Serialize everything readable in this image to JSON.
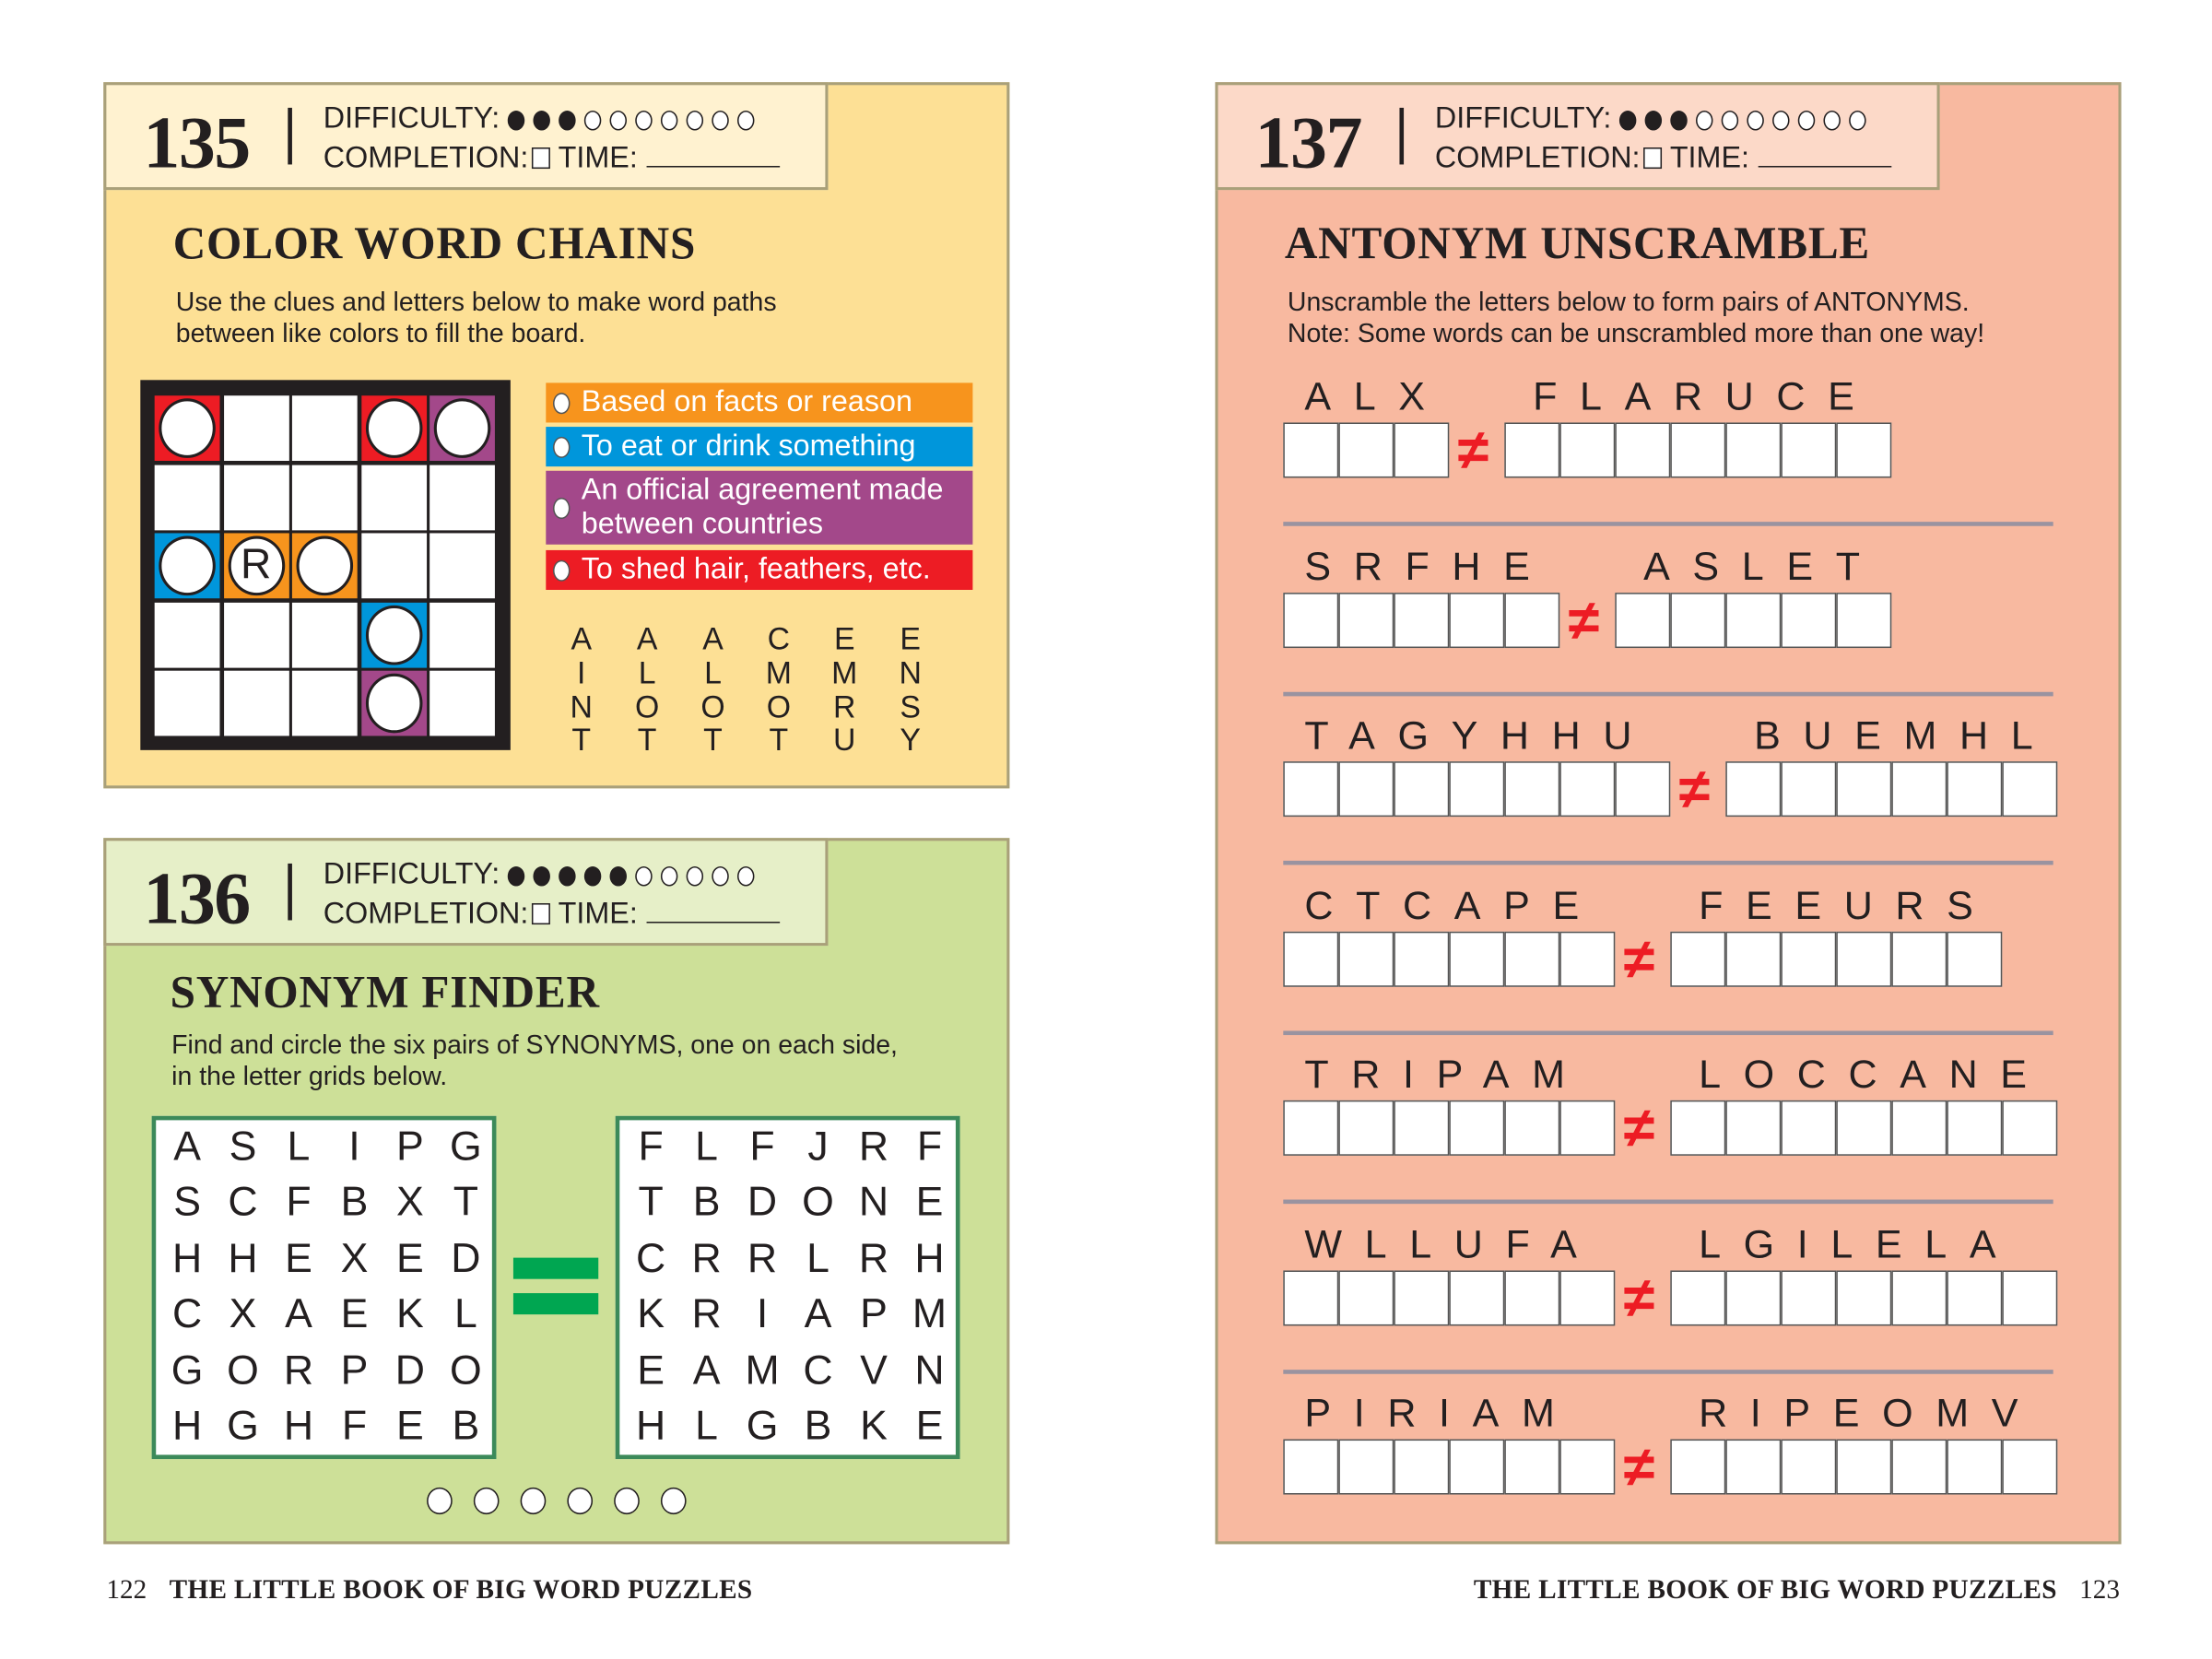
{
  "colors": {
    "red": "#ed1c24",
    "orange": "#f7941d",
    "blue": "#0096db",
    "purple": "#a3488a",
    "white": "#ffffff",
    "green": "#00a651",
    "panel135": "#fde095",
    "panel136": "#cde098",
    "panel137": "#f8b9a0"
  },
  "labels": {
    "difficulty": "DIFFICULTY:",
    "completion": "COMPLETION:",
    "time": "TIME:"
  },
  "puzzle135": {
    "number": "135",
    "difficulty": 3,
    "difficulty_max": 10,
    "title": "COLOR WORD CHAINS",
    "instructions": [
      "Use the clues and letters below to make word paths",
      "between like colors to fill the board."
    ],
    "grid": [
      [
        "red",
        "white",
        "white",
        "red",
        "purple"
      ],
      [
        "white",
        "white",
        "white",
        "white",
        "white"
      ],
      [
        "blue",
        "orange",
        "orange",
        "white",
        "white"
      ],
      [
        "white",
        "white",
        "white",
        "blue",
        "white"
      ],
      [
        "white",
        "white",
        "white",
        "purple",
        "white"
      ]
    ],
    "circles": [
      [
        0,
        0,
        ""
      ],
      [
        0,
        3,
        ""
      ],
      [
        0,
        4,
        ""
      ],
      [
        2,
        0,
        ""
      ],
      [
        2,
        1,
        "R"
      ],
      [
        2,
        2,
        ""
      ],
      [
        3,
        3,
        ""
      ],
      [
        4,
        3,
        ""
      ]
    ],
    "clues": [
      {
        "color": "orange",
        "lines": [
          "Based on facts or reason"
        ]
      },
      {
        "color": "blue",
        "lines": [
          "To eat or drink something"
        ]
      },
      {
        "color": "purple",
        "lines": [
          "An official agreement made",
          "between countries"
        ]
      },
      {
        "color": "red",
        "lines": [
          "To shed hair, feathers, etc."
        ]
      }
    ],
    "letter_columns": [
      [
        "A",
        "I",
        "N",
        "T"
      ],
      [
        "A",
        "L",
        "O",
        "T"
      ],
      [
        "A",
        "L",
        "O",
        "T"
      ],
      [
        "C",
        "M",
        "O",
        "T"
      ],
      [
        "E",
        "M",
        "R",
        "U"
      ],
      [
        "E",
        "N",
        "S",
        "Y"
      ]
    ]
  },
  "puzzle136": {
    "number": "136",
    "difficulty": 5,
    "difficulty_max": 10,
    "title": "SYNONYM FINDER",
    "instructions": [
      "Find and circle the six pairs of SYNONYMS, one on each side,",
      "in the letter grids below."
    ],
    "left_grid": [
      "ASLIPG",
      "SCFBXT",
      "HHEXED",
      "CXAEKL",
      "GORPDO",
      "HGHFEB"
    ],
    "right_grid": [
      "FLFJRF",
      "TBDONE",
      "CRRLRH",
      "KRIAPM",
      "EAMCVN",
      "HLGBKE"
    ],
    "answer_circles": 6
  },
  "puzzle137": {
    "number": "137",
    "difficulty": 3,
    "difficulty_max": 10,
    "title": "ANTONYM UNSCRAMBLE",
    "instructions": [
      "Unscramble the letters below to form pairs of ANTONYMS.",
      "Note: Some words can be unscrambled more than one way!"
    ],
    "not_equal": "≠",
    "pairs": [
      [
        "ALX",
        "FLARUCE"
      ],
      [
        "SRFHE",
        "ASLET"
      ],
      [
        "TAGYHHU",
        "BUEMHL"
      ],
      [
        "CTCAPE",
        "FEEURS"
      ],
      [
        "TRIPAM",
        "LOCCANE"
      ],
      [
        "WLLUFA",
        "LGILELA"
      ],
      [
        "PIRIAM",
        "RIPEOMV"
      ]
    ]
  },
  "footer": {
    "left_page": "122",
    "right_page": "123",
    "book_title": "THE LITTLE BOOK OF BIG WORD PUZZLES"
  }
}
